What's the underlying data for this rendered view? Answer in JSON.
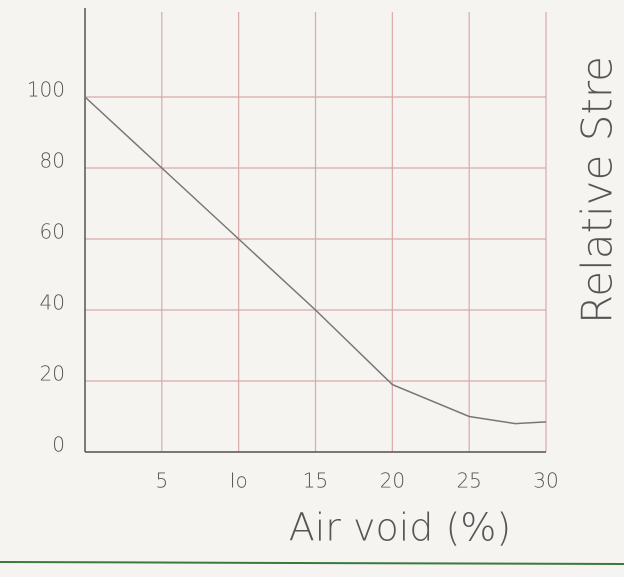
{
  "chart_data": {
    "type": "line",
    "y_label": "Relative Stre",
    "x_label": "Air void (%)",
    "x": [
      0,
      5,
      10,
      15,
      20,
      25,
      28,
      30
    ],
    "series": [
      {
        "color": "#777777",
        "values": [
          100,
          80,
          60,
          40,
          19,
          10,
          8,
          8.5
        ]
      }
    ],
    "xlim": [
      0,
      30
    ],
    "xticks": [
      5,
      {
        "value": 10,
        "label": "Io"
      },
      15,
      20,
      25,
      30
    ],
    "ylim": [
      0,
      120
    ],
    "yticks": [
      0,
      20,
      40,
      60,
      80,
      100
    ],
    "grid": true
  }
}
